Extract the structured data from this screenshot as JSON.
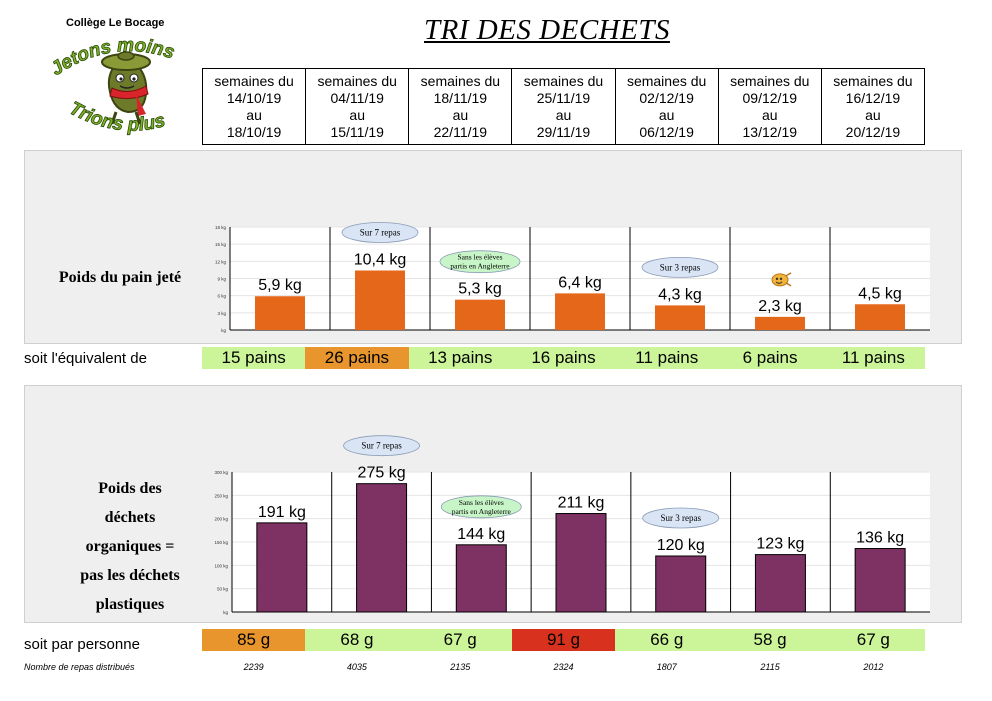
{
  "header": {
    "school": "Collège Le Bocage",
    "title": "TRI DES DECHETS",
    "logo_top": "Jetons moins",
    "logo_bottom": "Trions plus"
  },
  "weeks": [
    {
      "l1": "semaines du",
      "l2": "14/10/19",
      "l3": "au",
      "l4": "18/10/19"
    },
    {
      "l1": "semaines du",
      "l2": "04/11/19",
      "l3": "au",
      "l4": "15/11/19"
    },
    {
      "l1": "semaines du",
      "l2": "18/11/19",
      "l3": "au",
      "l4": "22/11/19"
    },
    {
      "l1": "semaines du",
      "l2": "25/11/19",
      "l3": "au",
      "l4": "29/11/19"
    },
    {
      "l1": "semaines du",
      "l2": "02/12/19",
      "l3": "au",
      "l4": "06/12/19"
    },
    {
      "l1": "semaines du",
      "l2": "09/12/19",
      "l3": "au",
      "l4": "13/12/19"
    },
    {
      "l1": "semaines du",
      "l2": "16/12/19",
      "l3": "au",
      "l4": "20/12/19"
    }
  ],
  "bread": {
    "label": "Poids du pain jeté",
    "equiv_label": "soit l'équivalent de",
    "equiv": [
      "15 pains",
      "26 pains",
      "13 pains",
      "16 pains",
      "11 pains",
      "6 pains",
      "11 pains"
    ],
    "equiv_colors": [
      "#ccf59a",
      "#e8952d",
      "#ccf59a",
      "#ccf59a",
      "#ccf59a",
      "#ccf59a",
      "#ccf59a"
    ]
  },
  "waste": {
    "label_lines": [
      "Poids des",
      "déchets",
      "organiques =",
      "pas les déchets",
      "plastiques"
    ],
    "per_person_label": "soit par personne",
    "per_person": [
      "85 g",
      "68 g",
      "67 g",
      "91 g",
      "66 g",
      "58 g",
      "67 g"
    ],
    "per_person_colors": [
      "#e8952d",
      "#ccf59a",
      "#ccf59a",
      "#d8321e",
      "#ccf59a",
      "#ccf59a",
      "#ccf59a"
    ],
    "meals_label": "Nombre de repas distribués",
    "meals": [
      "2239",
      "4035",
      "2135",
      "2324",
      "1807",
      "2115",
      "2012"
    ]
  },
  "chart_data": [
    {
      "type": "bar",
      "categories": [
        "14/10/19 au 18/10/19",
        "04/11/19 au 15/11/19",
        "18/11/19 au 22/11/19",
        "25/11/19 au 29/11/19",
        "02/12/19 au 06/12/19",
        "09/12/19 au 13/12/19",
        "16/12/19 au 20/12/19"
      ],
      "values": [
        5.9,
        10.4,
        5.3,
        6.4,
        4.3,
        2.3,
        4.5
      ],
      "data_labels": [
        "5,9 kg",
        "10,4 kg",
        "5,3 kg",
        "6,4 kg",
        "4,3 kg",
        "2,3 kg",
        "4,5 kg"
      ],
      "yticks": [
        "kg",
        "3 kg",
        "6 kg",
        "9 kg",
        "12 kg",
        "15 kg",
        "18 kg"
      ],
      "ylim": [
        0,
        18
      ],
      "color": "#e5681a",
      "annotations": [
        {
          "category": 1,
          "text": "Sur 7 repas",
          "fill": "#d9e5f5"
        },
        {
          "category": 2,
          "text": "Sans les élèves partis en Angleterre",
          "fill": "#c7f5c7"
        },
        {
          "category": 4,
          "text": "Sur 3 repas",
          "fill": "#d9e5f5"
        }
      ],
      "smiley_category": 5
    },
    {
      "type": "bar",
      "categories": [
        "14/10/19 au 18/10/19",
        "04/11/19 au 15/11/19",
        "18/11/19 au 22/11/19",
        "25/11/19 au 29/11/19",
        "02/12/19 au 06/12/19",
        "09/12/19 au 13/12/19",
        "16/12/19 au 20/12/19"
      ],
      "values": [
        191,
        275,
        144,
        211,
        120,
        123,
        136
      ],
      "data_labels": [
        "191 kg",
        "275 kg",
        "144 kg",
        "211 kg",
        "120 kg",
        "123 kg",
        "136 kg"
      ],
      "yticks": [
        "kg",
        "50 kg",
        "100 kg",
        "150 kg",
        "200 kg",
        "250 kg",
        "300 kg"
      ],
      "ylim": [
        0,
        300
      ],
      "color": "#7e3163",
      "annotations": [
        {
          "category": 1,
          "text": "Sur 7 repas",
          "fill": "#d9e5f5"
        },
        {
          "category": 2,
          "text": "Sans les élèves partis en Angleterre",
          "fill": "#c7f5c7"
        },
        {
          "category": 4,
          "text": "Sur 3 repas",
          "fill": "#d9e5f5"
        }
      ]
    }
  ]
}
